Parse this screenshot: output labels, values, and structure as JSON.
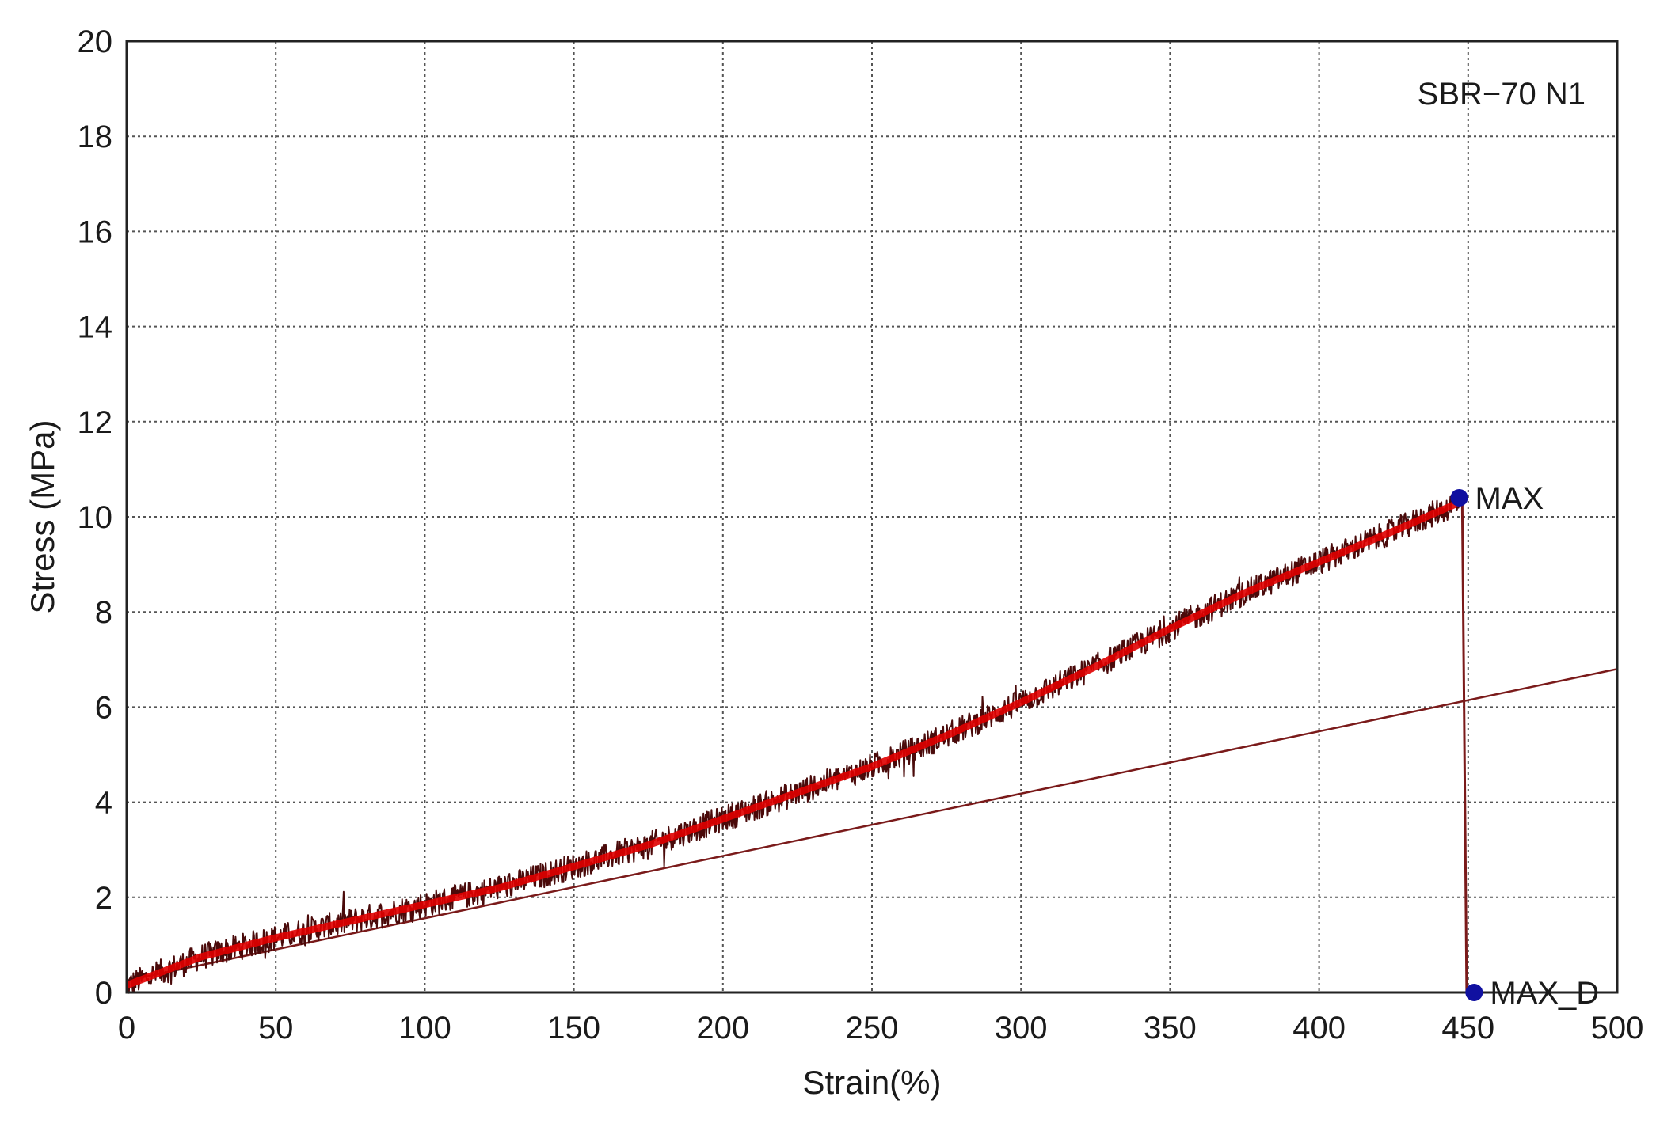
{
  "chart_data": {
    "type": "line",
    "title": "",
    "xlabel": "Strain(%)",
    "ylabel": "Stress (MPa)",
    "xlim": [
      0,
      500
    ],
    "ylim": [
      0,
      20
    ],
    "x_ticks": [
      0,
      50,
      100,
      150,
      200,
      250,
      300,
      350,
      400,
      450,
      500
    ],
    "y_ticks": [
      0,
      2,
      4,
      6,
      8,
      10,
      12,
      14,
      16,
      18,
      20
    ],
    "grid": true,
    "legend": "none",
    "sample_label": "SBR−70 N1",
    "series": [
      {
        "color": "#e00000",
        "noise_color": "#4a0a0a",
        "x": [
          0,
          25,
          50,
          75,
          100,
          125,
          150,
          175,
          200,
          225,
          250,
          275,
          300,
          325,
          350,
          375,
          400,
          425,
          447
        ],
        "y": [
          0.15,
          0.75,
          1.15,
          1.5,
          1.85,
          2.2,
          2.65,
          3.1,
          3.65,
          4.2,
          4.75,
          5.4,
          6.1,
          6.85,
          7.65,
          8.4,
          9.05,
          9.7,
          10.3
        ]
      }
    ],
    "reference_line": {
      "color": "#7a1a1a",
      "x": [
        0,
        500
      ],
      "y": [
        0.25,
        6.8
      ]
    },
    "drop_line": {
      "color": "#7a1a1a",
      "x": [
        448,
        449.5
      ],
      "y": [
        10.4,
        0
      ]
    },
    "points": [
      {
        "label": "MAX",
        "x": 447,
        "y": 10.4,
        "color": "#1010a0"
      },
      {
        "label": "MAX_D",
        "x": 452,
        "y": 0,
        "color": "#1010a0"
      }
    ]
  }
}
